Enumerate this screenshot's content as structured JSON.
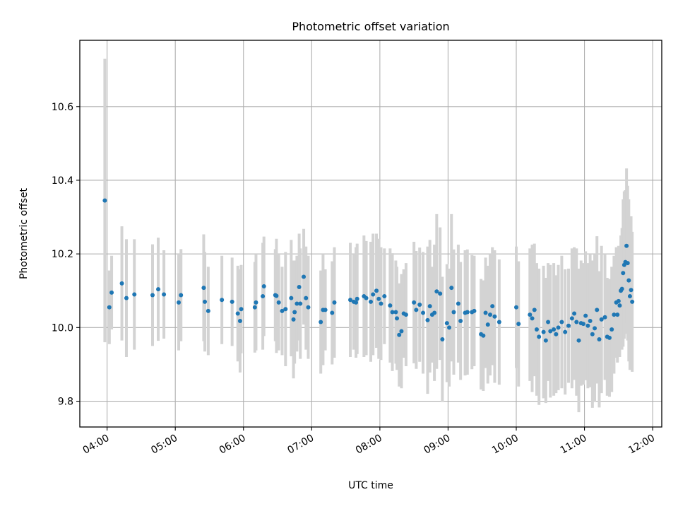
{
  "chart_data": {
    "type": "scatter",
    "title": "Photometric offset variation",
    "xlabel": "UTC time",
    "ylabel": "Photometric offset",
    "xlim": [
      "03:36",
      "12:08"
    ],
    "ylim": [
      9.73,
      10.78
    ],
    "x_ticks": [
      "04:00",
      "05:00",
      "06:00",
      "07:00",
      "08:00",
      "09:00",
      "10:00",
      "11:00",
      "12:00"
    ],
    "y_ticks": [
      9.8,
      10.0,
      10.2,
      10.4,
      10.6
    ],
    "y_tick_labels": [
      "9.8",
      "10.0",
      "10.2",
      "10.4",
      "10.6"
    ],
    "grid": true,
    "colors": {
      "point": "#1f77b4",
      "errorbar": "#d3d3d3",
      "grid": "#b0b0b0"
    },
    "series": [
      {
        "x": [
          "03:58",
          "04:02",
          "04:04",
          "04:13",
          "04:17",
          "04:24",
          "04:40",
          "04:45",
          "04:50",
          "05:03",
          "05:05",
          "05:25",
          "05:26",
          "05:29",
          "05:41",
          "05:50",
          "05:55",
          "05:57",
          "05:58",
          "06:10",
          "06:11",
          "06:17",
          "06:18",
          "06:28",
          "06:29",
          "06:31",
          "06:34",
          "06:37",
          "06:42",
          "06:44",
          "06:45",
          "06:47",
          "06:49",
          "06:50",
          "06:53",
          "06:55",
          "06:57",
          "07:08",
          "07:10",
          "07:12",
          "07:18",
          "07:20",
          "07:34",
          "07:37",
          "07:39",
          "07:40",
          "07:46",
          "07:48",
          "07:52",
          "07:54",
          "07:57",
          "07:59",
          "08:01",
          "08:04",
          "08:09",
          "08:11",
          "08:14",
          "08:15",
          "08:17",
          "08:19",
          "08:21",
          "08:23",
          "08:30",
          "08:32",
          "08:35",
          "08:38",
          "08:42",
          "08:44",
          "08:46",
          "08:48",
          "08:50",
          "08:53",
          "08:55",
          "08:59",
          "09:01",
          "09:03",
          "09:05",
          "09:09",
          "09:11",
          "09:15",
          "09:17",
          "09:21",
          "09:23",
          "09:29",
          "09:31",
          "09:33",
          "09:35",
          "09:37",
          "09:39",
          "09:41",
          "09:45",
          "10:00",
          "10:02",
          "10:12",
          "10:14",
          "10:16",
          "10:18",
          "10:20",
          "10:24",
          "10:26",
          "10:28",
          "10:30",
          "10:33",
          "10:35",
          "10:37",
          "10:40",
          "10:43",
          "10:46",
          "10:49",
          "10:51",
          "10:53",
          "10:55",
          "10:57",
          "10:59",
          "11:01",
          "11:03",
          "11:05",
          "11:07",
          "11:09",
          "11:11",
          "11:13",
          "11:15",
          "11:18",
          "11:20",
          "11:22",
          "11:24",
          "11:26",
          "11:28",
          "11:29",
          "11:30",
          "11:31",
          "11:32",
          "11:33",
          "11:34",
          "11:35",
          "11:36",
          "11:37",
          "11:38",
          "11:39",
          "11:40",
          "11:41",
          "11:42"
        ],
        "y": [
          10.345,
          10.055,
          10.095,
          10.12,
          10.08,
          10.09,
          10.088,
          10.104,
          10.09,
          10.068,
          10.088,
          10.108,
          10.07,
          10.045,
          10.075,
          10.07,
          10.038,
          10.018,
          10.05,
          10.055,
          10.068,
          10.085,
          10.112,
          10.088,
          10.086,
          10.068,
          10.045,
          10.05,
          10.08,
          10.022,
          10.042,
          10.065,
          10.11,
          10.065,
          10.138,
          10.08,
          10.055,
          10.015,
          10.048,
          10.048,
          10.04,
          10.068,
          10.075,
          10.07,
          10.068,
          10.078,
          10.085,
          10.08,
          10.07,
          10.09,
          10.1,
          10.078,
          10.065,
          10.085,
          10.06,
          10.042,
          10.042,
          10.025,
          9.98,
          9.99,
          10.038,
          10.035,
          10.068,
          10.048,
          10.062,
          10.04,
          10.02,
          10.058,
          10.035,
          10.04,
          10.098,
          10.092,
          9.968,
          10.012,
          10.0,
          10.108,
          10.042,
          10.065,
          10.018,
          10.04,
          10.042,
          10.042,
          10.045,
          9.982,
          9.978,
          10.04,
          10.008,
          10.035,
          10.058,
          10.03,
          10.015,
          10.055,
          10.01,
          10.035,
          10.025,
          10.048,
          9.995,
          9.975,
          9.988,
          9.965,
          10.015,
          9.99,
          9.995,
          9.982,
          10.0,
          10.015,
          9.988,
          10.005,
          10.025,
          10.038,
          10.015,
          9.965,
          10.012,
          10.01,
          10.032,
          10.005,
          10.018,
          9.982,
          9.998,
          10.048,
          9.968,
          10.022,
          10.028,
          9.975,
          9.972,
          9.995,
          10.035,
          10.068,
          10.035,
          10.072,
          10.06,
          10.1,
          10.105,
          10.148,
          10.17,
          10.178,
          10.222,
          10.175,
          10.128,
          10.085,
          10.102,
          10.07
        ],
        "err": [
          0.385,
          0.1,
          0.1,
          0.155,
          0.16,
          0.15,
          0.138,
          0.14,
          0.12,
          0.13,
          0.125,
          0.145,
          0.135,
          0.12,
          0.12,
          0.12,
          0.13,
          0.14,
          0.12,
          0.123,
          0.13,
          0.145,
          0.135,
          0.125,
          0.155,
          0.13,
          0.12,
          0.155,
          0.158,
          0.16,
          0.14,
          0.13,
          0.145,
          0.15,
          0.13,
          0.14,
          0.14,
          0.14,
          0.15,
          0.11,
          0.14,
          0.15,
          0.155,
          0.13,
          0.15,
          0.15,
          0.165,
          0.155,
          0.163,
          0.165,
          0.155,
          0.163,
          0.153,
          0.13,
          0.155,
          0.16,
          0.14,
          0.14,
          0.14,
          0.155,
          0.12,
          0.14,
          0.165,
          0.16,
          0.155,
          0.165,
          0.2,
          0.18,
          0.13,
          0.185,
          0.21,
          0.18,
          0.17,
          0.16,
          0.16,
          0.2,
          0.17,
          0.16,
          0.16,
          0.17,
          0.17,
          0.155,
          0.15,
          0.15,
          0.15,
          0.15,
          0.16,
          0.165,
          0.16,
          0.18,
          0.17,
          0.165,
          0.17,
          0.18,
          0.2,
          0.18,
          0.18,
          0.185,
          0.18,
          0.17,
          0.16,
          0.18,
          0.18,
          0.16,
          0.17,
          0.18,
          0.17,
          0.155,
          0.19,
          0.18,
          0.2,
          0.195,
          0.17,
          0.165,
          0.175,
          0.17,
          0.18,
          0.2,
          0.2,
          0.2,
          0.185,
          0.2,
          0.17,
          0.16,
          0.16,
          0.17,
          0.16,
          0.15,
          0.13,
          0.15,
          0.14,
          0.15,
          0.165,
          0.2,
          0.2,
          0.195,
          0.21,
          0.21,
          0.22,
          0.2,
          0.2,
          0.19
        ]
      }
    ]
  }
}
